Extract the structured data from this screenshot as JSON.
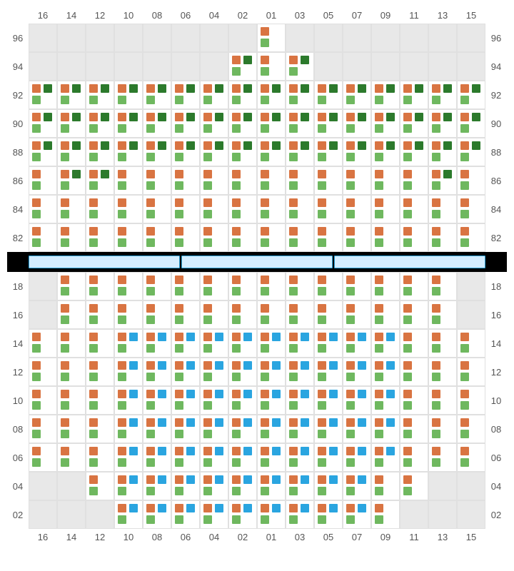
{
  "columns": [
    "16",
    "14",
    "12",
    "10",
    "08",
    "06",
    "04",
    "02",
    "01",
    "03",
    "05",
    "07",
    "09",
    "11",
    "13",
    "15"
  ],
  "top_rows": [
    "96",
    "94",
    "92",
    "90",
    "88",
    "86",
    "84",
    "82"
  ],
  "bottom_rows": [
    "18",
    "16",
    "14",
    "12",
    "10",
    "08",
    "06",
    "04",
    "02"
  ],
  "colors": {
    "orange": "#d97442",
    "green": "#6fb85f",
    "darkgreen": "#2c7a2c",
    "blue": "#2aa5e0",
    "inactive": "#e8e8e8",
    "active": "#ffffff",
    "border": "#e0e0e0",
    "label": "#555555"
  },
  "top_grid": [
    [
      "i",
      "i",
      "i",
      "i",
      "i",
      "i",
      "i",
      "i",
      "og",
      "i",
      "i",
      "i",
      "i",
      "i",
      "i",
      "i"
    ],
    [
      "i",
      "i",
      "i",
      "i",
      "i",
      "i",
      "i",
      "odg",
      "og",
      "odg",
      "i",
      "i",
      "i",
      "i",
      "i",
      "i"
    ],
    [
      "odg",
      "odg",
      "odg",
      "odg",
      "odg",
      "odg",
      "odg",
      "odg",
      "odg",
      "odg",
      "odg",
      "odg",
      "odg",
      "odg",
      "odg",
      "odg"
    ],
    [
      "odg",
      "odg",
      "odg",
      "odg",
      "odg",
      "odg",
      "odg",
      "odg",
      "odg",
      "odg",
      "odg",
      "odg",
      "odg",
      "odg",
      "odg",
      "odg"
    ],
    [
      "odg",
      "odg",
      "odg",
      "odg",
      "odg",
      "odg",
      "odg",
      "odg",
      "odg",
      "odg",
      "odg",
      "odg",
      "odg",
      "odg",
      "odg",
      "odg"
    ],
    [
      "og",
      "odg",
      "odg",
      "og",
      "og",
      "og",
      "og",
      "og",
      "og",
      "og",
      "og",
      "og",
      "og",
      "og",
      "odg",
      "og"
    ],
    [
      "og",
      "og",
      "og",
      "og",
      "og",
      "og",
      "og",
      "og",
      "og",
      "og",
      "og",
      "og",
      "og",
      "og",
      "og",
      "og"
    ],
    [
      "og",
      "og",
      "og",
      "og",
      "og",
      "og",
      "og",
      "og",
      "og",
      "og",
      "og",
      "og",
      "og",
      "og",
      "og",
      "og"
    ]
  ],
  "bottom_grid": [
    [
      "i",
      "og",
      "og",
      "og",
      "og",
      "og",
      "og",
      "og",
      "og",
      "og",
      "og",
      "og",
      "og",
      "og",
      "og",
      "i"
    ],
    [
      "i",
      "og",
      "og",
      "og",
      "og",
      "og",
      "og",
      "og",
      "og",
      "og",
      "og",
      "og",
      "og",
      "og",
      "og",
      "i"
    ],
    [
      "og",
      "og",
      "og",
      "obg",
      "obg",
      "obg",
      "obg",
      "obg",
      "obg",
      "obg",
      "obg",
      "obg",
      "obg",
      "og",
      "og",
      "og"
    ],
    [
      "og",
      "og",
      "og",
      "obg",
      "obg",
      "obg",
      "obg",
      "obg",
      "obg",
      "obg",
      "obg",
      "obg",
      "obg",
      "og",
      "og",
      "og"
    ],
    [
      "og",
      "og",
      "og",
      "obg",
      "obg",
      "obg",
      "obg",
      "obg",
      "obg",
      "obg",
      "obg",
      "obg",
      "obg",
      "og",
      "og",
      "og"
    ],
    [
      "og",
      "og",
      "og",
      "obg",
      "obg",
      "obg",
      "obg",
      "obg",
      "obg",
      "obg",
      "obg",
      "obg",
      "obg",
      "og",
      "og",
      "og"
    ],
    [
      "og",
      "og",
      "og",
      "obg",
      "obg",
      "obg",
      "obg",
      "obg",
      "obg",
      "obg",
      "obg",
      "obg",
      "obg",
      "og",
      "og",
      "og"
    ],
    [
      "i",
      "i",
      "og",
      "obg",
      "obg",
      "obg",
      "obg",
      "obg",
      "obg",
      "obg",
      "obg",
      "obg",
      "og",
      "og",
      "i",
      "i"
    ],
    [
      "i",
      "i",
      "i",
      "obg",
      "obg",
      "obg",
      "obg",
      "obg",
      "obg",
      "obg",
      "obg",
      "obg",
      "og",
      "i",
      "i",
      "i"
    ]
  ],
  "label_fontsize": 13,
  "marker_size": 12,
  "cell_size": 40,
  "divider_bars": 3
}
